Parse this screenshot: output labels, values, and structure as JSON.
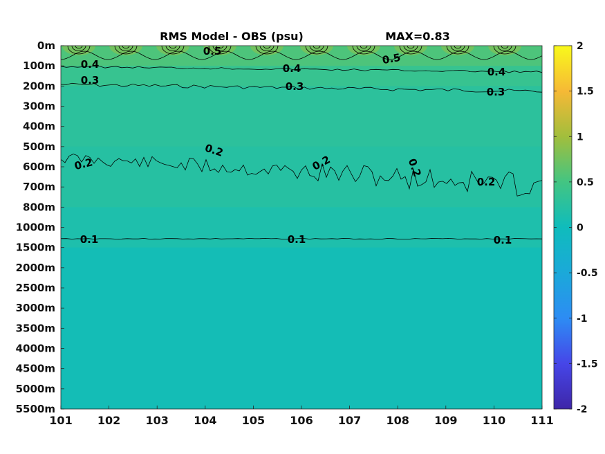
{
  "chart_data": {
    "type": "heatmap",
    "title": "RMS Model - OBS (psu)",
    "subtitle": "MAX=0.83",
    "x_ticks": [
      "101",
      "102",
      "103",
      "104",
      "105",
      "106",
      "107",
      "108",
      "109",
      "110",
      "111"
    ],
    "xlim": [
      101,
      111
    ],
    "y_ticks": [
      "0m",
      "100m",
      "200m",
      "300m",
      "400m",
      "500m",
      "600m",
      "700m",
      "800m",
      "1000m",
      "1500m",
      "2000m",
      "2500m",
      "3000m",
      "3500m",
      "4000m",
      "4500m",
      "5000m",
      "5500m"
    ],
    "colorbar": {
      "ticks": [
        "2",
        "1.5",
        "1",
        "0.5",
        "0",
        "-0.5",
        "-1",
        "-1.5",
        "-2"
      ],
      "range": [
        -2,
        2
      ],
      "colormap": "parula"
    },
    "field_bands": [
      {
        "depth_from": "0m",
        "depth_to": "100m",
        "value": 0.55
      },
      {
        "depth_from": "100m",
        "depth_to": "200m",
        "value": 0.38
      },
      {
        "depth_from": "200m",
        "depth_to": "500m",
        "value": 0.28
      },
      {
        "depth_from": "500m",
        "depth_to": "800m",
        "value": 0.22
      },
      {
        "depth_from": "800m",
        "depth_to": "1500m",
        "value": 0.14
      },
      {
        "depth_from": "1500m",
        "depth_to": "5500m",
        "value": 0.05
      }
    ],
    "contours": [
      {
        "level": 0.1,
        "labels": [
          "0.1",
          "0.1",
          "0.1"
        ]
      },
      {
        "level": 0.2,
        "labels": [
          "0.2",
          "0.2",
          "0.2",
          "0.2",
          "0.2"
        ]
      },
      {
        "level": 0.3,
        "labels": [
          "0.3",
          "0.3",
          "0.3"
        ]
      },
      {
        "level": 0.4,
        "labels": [
          "0.4",
          "0.4",
          "0.4"
        ]
      },
      {
        "level": 0.5,
        "labels": [
          "0.5",
          "0.5"
        ]
      }
    ],
    "colors": {
      "deep": "#1dbcb2",
      "mid": "#32c08c",
      "upper": "#4bc27a",
      "surface": "#62c265",
      "peak": "#8cc540"
    }
  }
}
